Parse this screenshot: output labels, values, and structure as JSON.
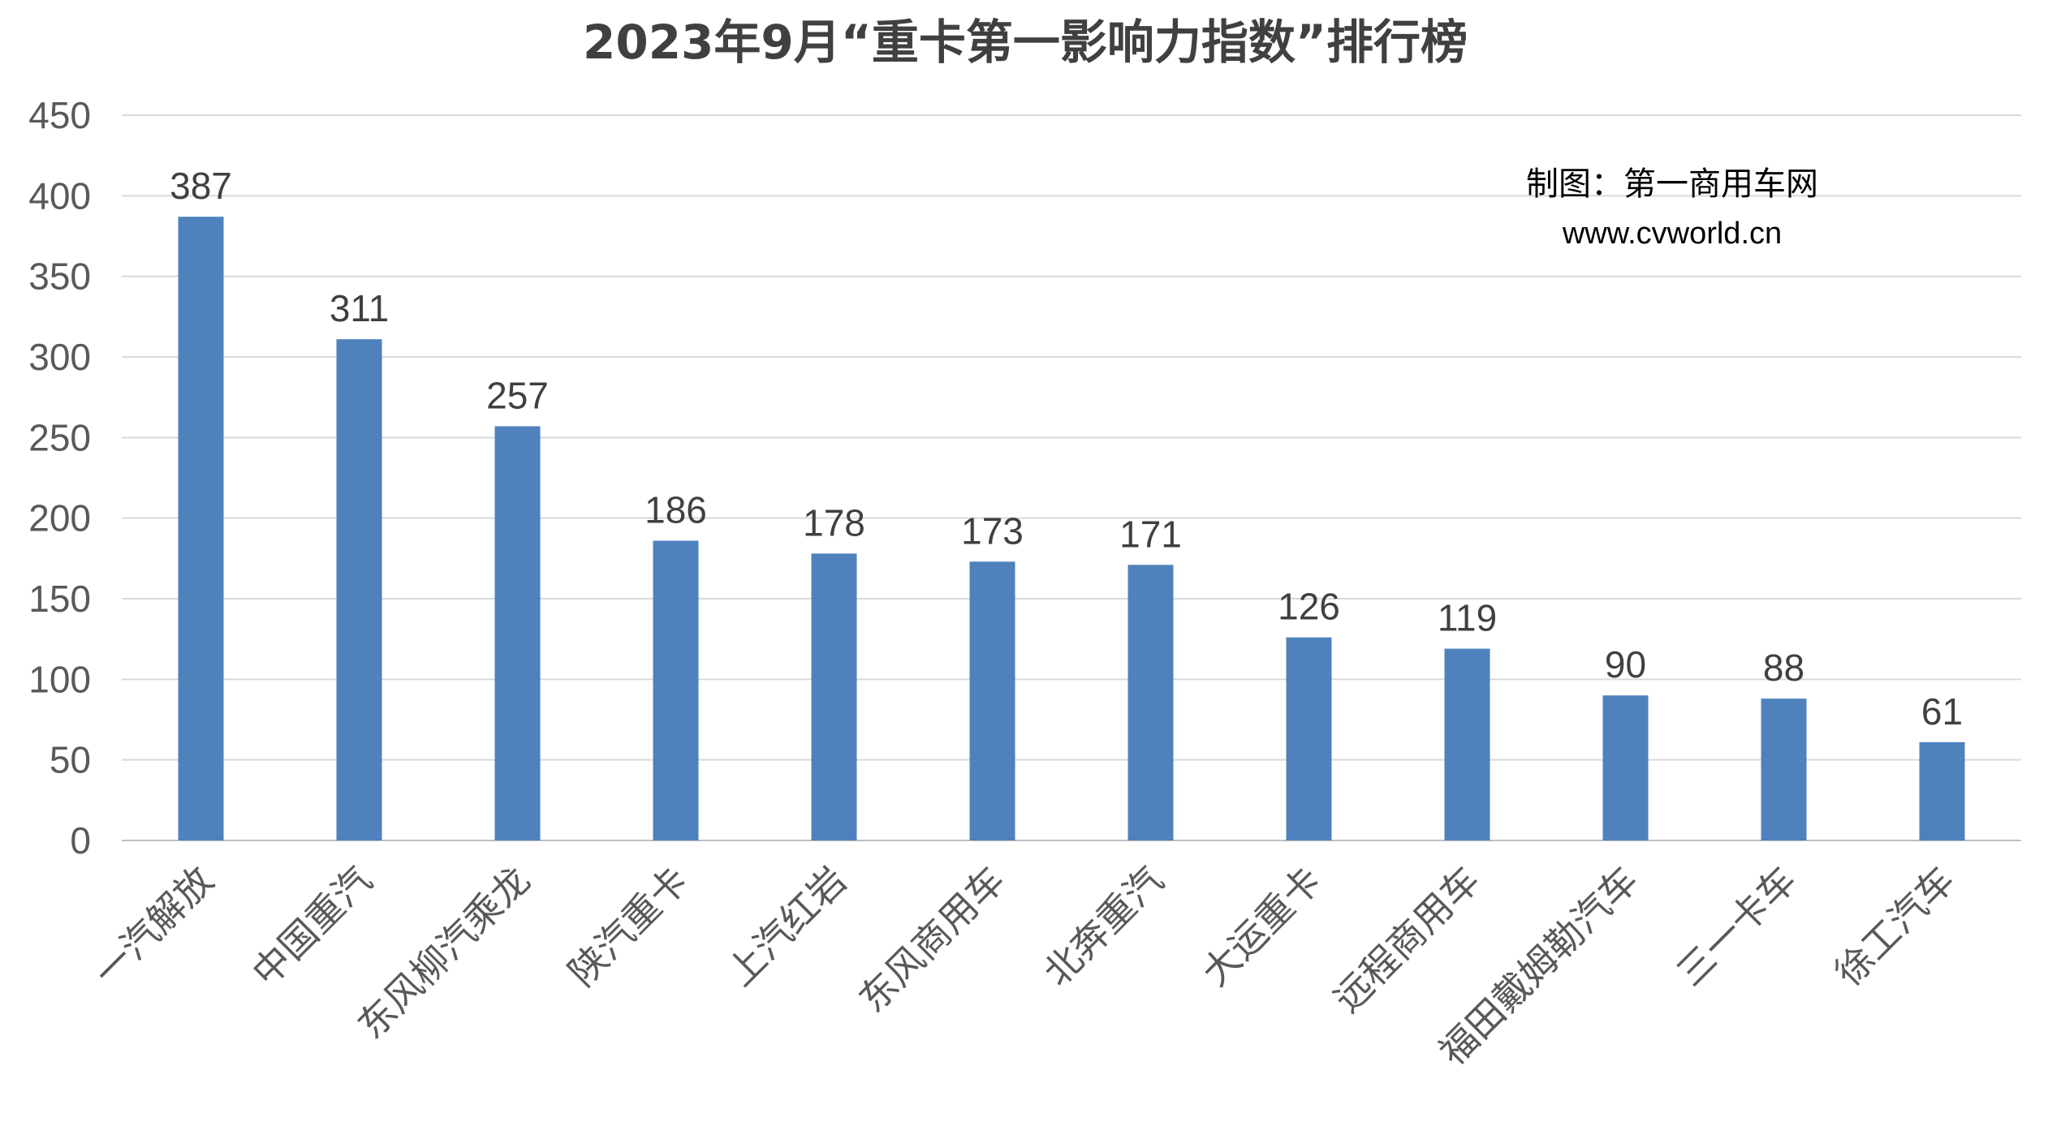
{
  "chart_data": {
    "type": "bar",
    "title": "2023年9月“重卡第一影响力指数”排行榜",
    "categories": [
      "一汽解放",
      "中国重汽",
      "东风柳汽乘龙",
      "陕汽重卡",
      "上汽红岩",
      "东风商用车",
      "北奔重汽",
      "大运重卡",
      "远程商用车",
      "福田戴姆勒汽车",
      "三一卡车",
      "徐工汽车"
    ],
    "values": [
      387,
      311,
      257,
      186,
      178,
      173,
      171,
      126,
      119,
      90,
      88,
      61
    ],
    "ylim": [
      0,
      450
    ],
    "yticks": [
      0,
      50,
      100,
      150,
      200,
      250,
      300,
      350,
      400,
      450
    ],
    "xlabel": "",
    "ylabel": "",
    "grid": true,
    "bar_color": "#4f81bd",
    "annotations": [
      "制图：第一商用车网",
      "www.cvworld.cn"
    ]
  }
}
